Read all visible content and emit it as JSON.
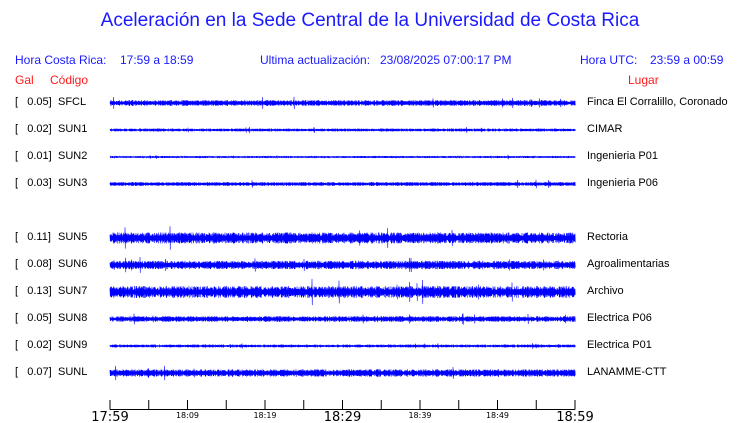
{
  "title": "Aceleración en la Sede Central de la Universidad de Costa Rica",
  "header": {
    "local_label": "Hora Costa Rica:",
    "local_range": "17:59 a 18:59",
    "update_label": "Ultima actualización:",
    "update_value": "23/08/2025 07:00:17 PM",
    "utc_label": "Hora UTC:",
    "utc_range": "23:59 a 00:59"
  },
  "columns": {
    "gal": "Gal",
    "code": "Código",
    "place": "Lugar"
  },
  "colors": {
    "title": "#1a1aff",
    "trace": "#0000ff",
    "column_headers": "#ff1a1a"
  },
  "chart_data": {
    "type": "line",
    "x_ticks": [
      "17:59",
      "18:09",
      "18:19",
      "18:29",
      "18:39",
      "18:49",
      "18:59"
    ],
    "x_range": [
      "17:59",
      "18:59"
    ],
    "stations": [
      {
        "gal": "[   0.05]",
        "code": "SFCL",
        "place": "Finca El Corralillo, Coronado",
        "peak_gal": 0.05
      },
      {
        "gal": "[   0.02]",
        "code": "SUN1",
        "place": "CIMAR",
        "peak_gal": 0.02
      },
      {
        "gal": "[   0.01]",
        "code": "SUN2",
        "place": "Ingenieria P01",
        "peak_gal": 0.01
      },
      {
        "gal": "[   0.03]",
        "code": "SUN3",
        "place": "Ingenieria P06",
        "peak_gal": 0.03
      },
      {
        "gal": "[   0.11]",
        "code": "SUN5",
        "place": "Rectoria",
        "peak_gal": 0.11
      },
      {
        "gal": "[   0.08]",
        "code": "SUN6",
        "place": "Agroalimentarias",
        "peak_gal": 0.08
      },
      {
        "gal": "[   0.13]",
        "code": "SUN7",
        "place": "Archivo",
        "peak_gal": 0.13
      },
      {
        "gal": "[   0.05]",
        "code": "SUN8",
        "place": "Electrica P06",
        "peak_gal": 0.05
      },
      {
        "gal": "[   0.02]",
        "code": "SUN9",
        "place": "Electrica P01",
        "peak_gal": 0.02
      },
      {
        "gal": "[   0.07]",
        "code": "SUNL",
        "place": "LANAMME-CTT",
        "peak_gal": 0.07
      }
    ]
  }
}
